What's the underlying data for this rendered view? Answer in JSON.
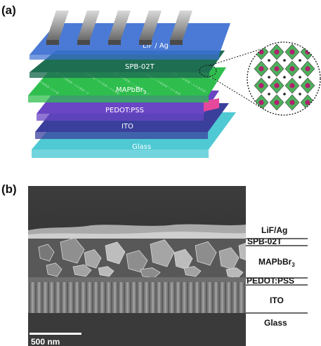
{
  "panel_a": {
    "label": "(a)",
    "layers": [
      {
        "key": "glass",
        "label": "Glass",
        "color": "#4fc9d3"
      },
      {
        "key": "ito",
        "label": "ITO",
        "color": "#3a3f9c"
      },
      {
        "key": "pedot",
        "label": "PEDOT:PSS",
        "color": "#6a45c4"
      },
      {
        "key": "mapbbr3",
        "label": "MAPbBr",
        "subscript": "3",
        "color": "#2fbe4e"
      },
      {
        "key": "spb",
        "label": "SPB-02T",
        "color": "#1e6e52"
      },
      {
        "key": "lifag",
        "label": "LiF / Ag",
        "color": "#3b6fd1"
      }
    ],
    "accent_color": "#e6489c",
    "electrode_color": "#4a4a4a",
    "crystal_colors": {
      "octahedra": "#3aa84a",
      "atoms": "#b0206e",
      "outline": "#333333"
    }
  },
  "panel_b": {
    "label": "(b)",
    "layers": [
      {
        "key": "lifag",
        "label": "LiF/Ag"
      },
      {
        "key": "spb",
        "label": "SPB-02T"
      },
      {
        "key": "mapbbr3",
        "label": "MAPbBr",
        "subscript": "3"
      },
      {
        "key": "pedot",
        "label": "PEDOT:PSS"
      },
      {
        "key": "ito",
        "label": "ITO"
      },
      {
        "key": "glass",
        "label": "Glass"
      }
    ],
    "scale_bar": {
      "label": "500 nm"
    }
  }
}
